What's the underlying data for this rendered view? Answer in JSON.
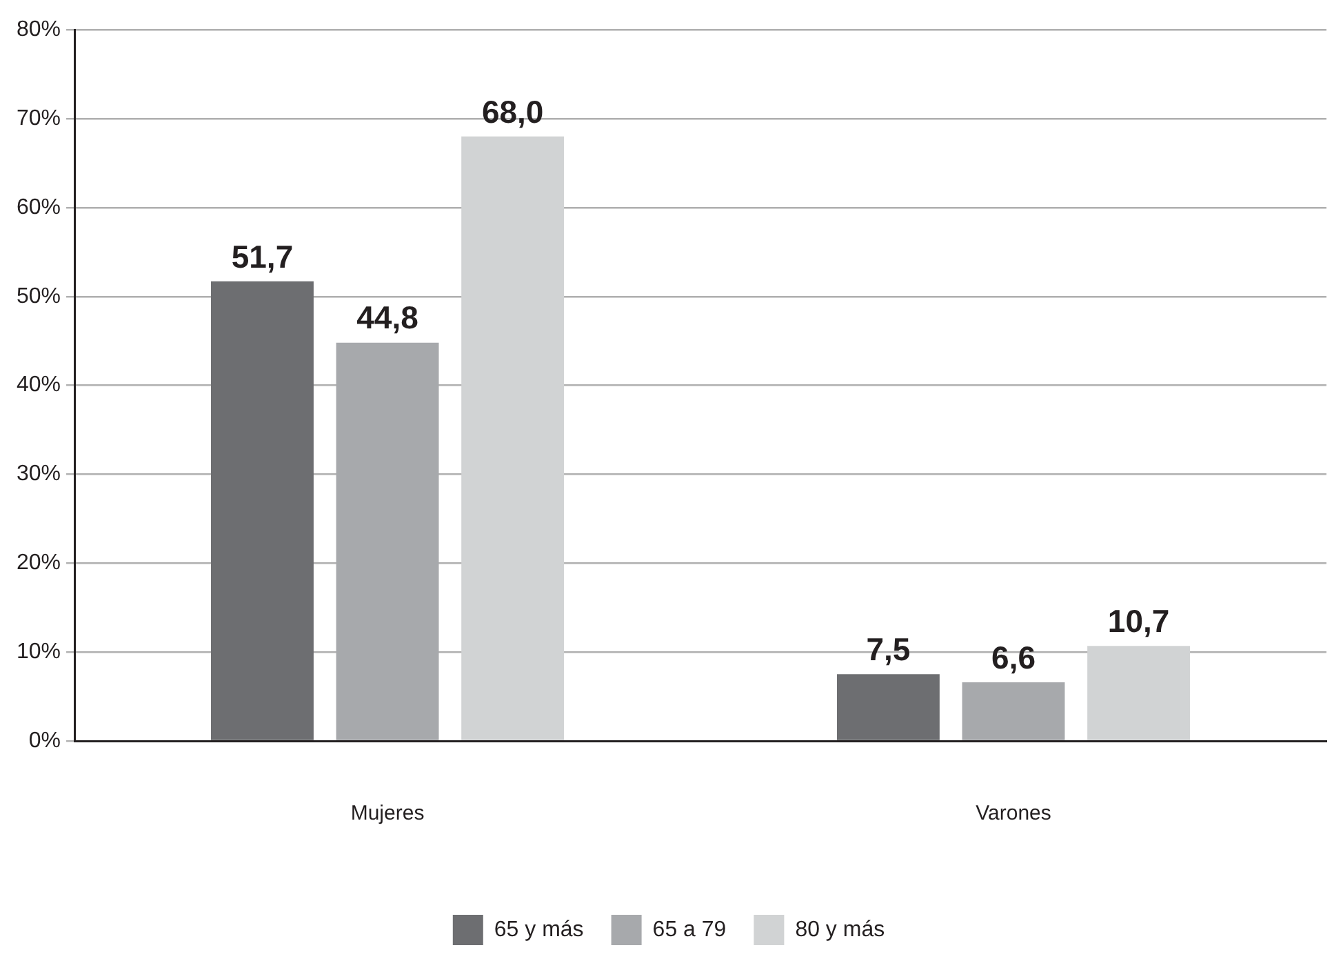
{
  "chart_data": {
    "type": "bar",
    "categories": [
      "Mujeres",
      "Varones"
    ],
    "series": [
      {
        "name": "65 y más",
        "color": "#6d6e71",
        "values": [
          51.7,
          7.5
        ],
        "value_labels": [
          "51,7",
          "7,5"
        ]
      },
      {
        "name": "65 a 79",
        "color": "#a7a9ac",
        "values": [
          44.8,
          6.6
        ],
        "value_labels": [
          "44,8",
          "6,6"
        ]
      },
      {
        "name": "80 y más",
        "color": "#d1d3d4",
        "values": [
          68.0,
          10.7
        ],
        "value_labels": [
          "68,0",
          "10,7"
        ]
      }
    ],
    "ylim": [
      0,
      80
    ],
    "yticks": [
      {
        "value": 0,
        "label": "0%"
      },
      {
        "value": 10,
        "label": "10%"
      },
      {
        "value": 20,
        "label": "20%"
      },
      {
        "value": 30,
        "label": "30%"
      },
      {
        "value": 40,
        "label": "40%"
      },
      {
        "value": 50,
        "label": "50%"
      },
      {
        "value": 60,
        "label": "60%"
      },
      {
        "value": 70,
        "label": "70%"
      },
      {
        "value": 80,
        "label": "80%"
      }
    ],
    "grid": "y",
    "legend": "bottom"
  }
}
